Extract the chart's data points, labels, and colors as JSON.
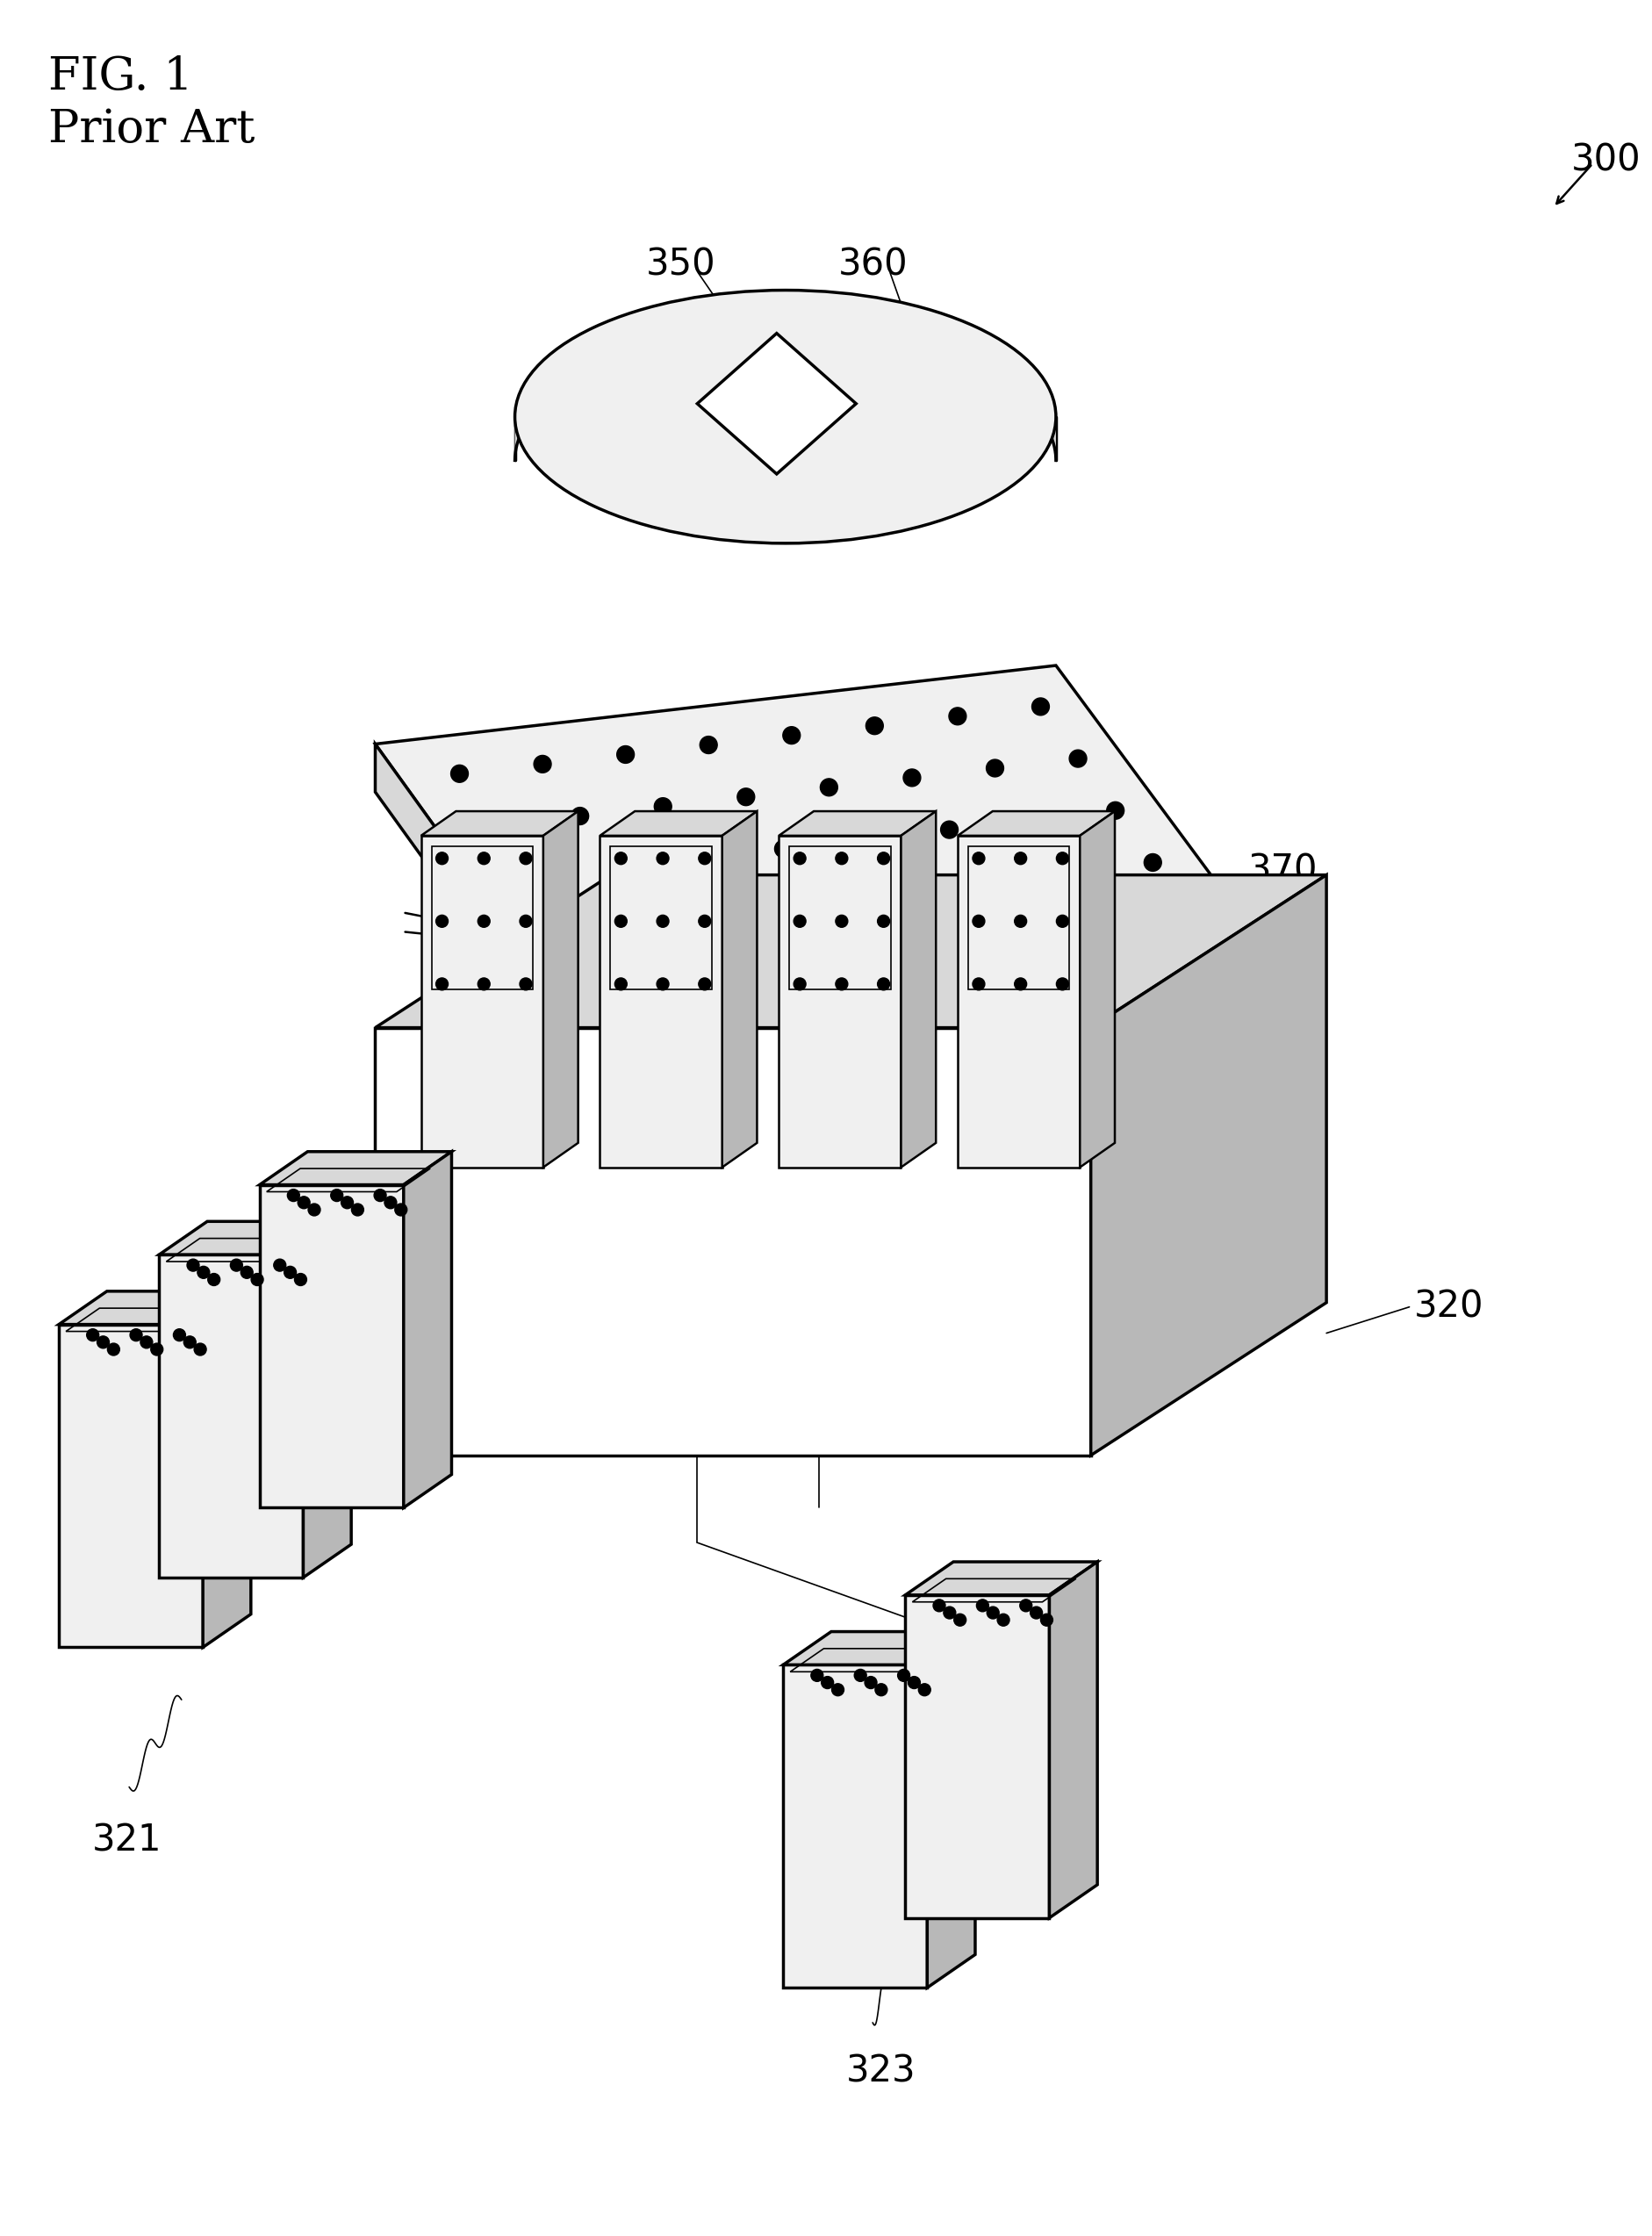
{
  "title_line1": "FIG. 1",
  "title_line2": "Prior Art",
  "label_300": "300",
  "label_320": "320",
  "label_321": "321",
  "label_323": "323",
  "label_350": "350",
  "label_360": "360",
  "label_370": "370",
  "bg_color": "#ffffff",
  "line_color": "#000000",
  "face_white": "#ffffff",
  "face_light": "#f0f0f0",
  "face_mid": "#d8d8d8",
  "face_dark": "#b8b8b8"
}
